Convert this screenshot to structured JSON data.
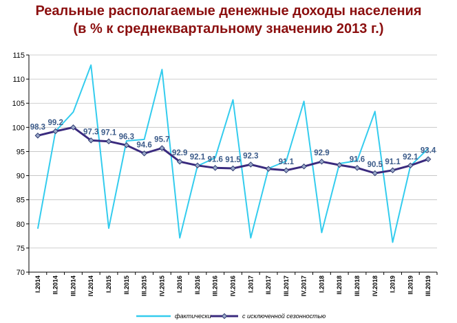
{
  "title_line1": "Реальные располагаемые денежные доходы населения",
  "title_line2": "(в % к среднеквартальному значению 2013 г.)",
  "chart_data": {
    "type": "line",
    "categories": [
      "I.2014",
      "II.2014",
      "III.2014",
      "IV.2014",
      "I.2015",
      "II.2015",
      "III.2015",
      "IV.2015",
      "I.2016",
      "II.2016",
      "III.2016",
      "IV.2016",
      "I.2017",
      "II.2017",
      "III.2017",
      "IV.2017",
      "I.2018",
      "II.2018",
      "III.2018",
      "IV.2018",
      "I.2019",
      "II.2019",
      "III.2019"
    ],
    "yticks": [
      70,
      75,
      80,
      85,
      90,
      95,
      100,
      105,
      110,
      115
    ],
    "ylim": [
      70,
      115
    ],
    "grid": true,
    "legend_position": "bottom",
    "series": [
      {
        "name": "фактически",
        "color": "#33ccee",
        "values": [
          79.0,
          99.2,
          103.2,
          112.9,
          79.1,
          97.2,
          97.5,
          112.0,
          77.1,
          92.0,
          93.7,
          105.7,
          77.1,
          91.5,
          93.0,
          105.4,
          78.2,
          92.5,
          93.1,
          103.3,
          76.2,
          92.0,
          95.6
        ]
      },
      {
        "name": "с исключенной сезонностью",
        "color": "#3a2a7e",
        "values": [
          98.3,
          99.2,
          100.0,
          97.3,
          97.1,
          96.3,
          94.6,
          95.7,
          92.9,
          92.1,
          91.6,
          91.5,
          92.3,
          91.4,
          91.1,
          91.9,
          92.9,
          92.2,
          91.6,
          90.5,
          91.1,
          92.1,
          93.4
        ]
      }
    ],
    "data_labels": [
      {
        "index": 0,
        "text": "98.3"
      },
      {
        "index": 1,
        "text": "99.2"
      },
      {
        "index": 3,
        "text": "97.3"
      },
      {
        "index": 4,
        "text": "97.1"
      },
      {
        "index": 5,
        "text": "96.3"
      },
      {
        "index": 6,
        "text": "94.6"
      },
      {
        "index": 7,
        "text": "95.7"
      },
      {
        "index": 8,
        "text": "92.9"
      },
      {
        "index": 9,
        "text": "92.1"
      },
      {
        "index": 10,
        "text": "91.6"
      },
      {
        "index": 11,
        "text": "91.5"
      },
      {
        "index": 12,
        "text": "92.3"
      },
      {
        "index": 14,
        "text": "91.1"
      },
      {
        "index": 16,
        "text": "92.9"
      },
      {
        "index": 18,
        "text": "91.6"
      },
      {
        "index": 19,
        "text": "90.5"
      },
      {
        "index": 20,
        "text": "91.1"
      },
      {
        "index": 21,
        "text": "92.1"
      },
      {
        "index": 22,
        "text": "93.4"
      }
    ]
  }
}
